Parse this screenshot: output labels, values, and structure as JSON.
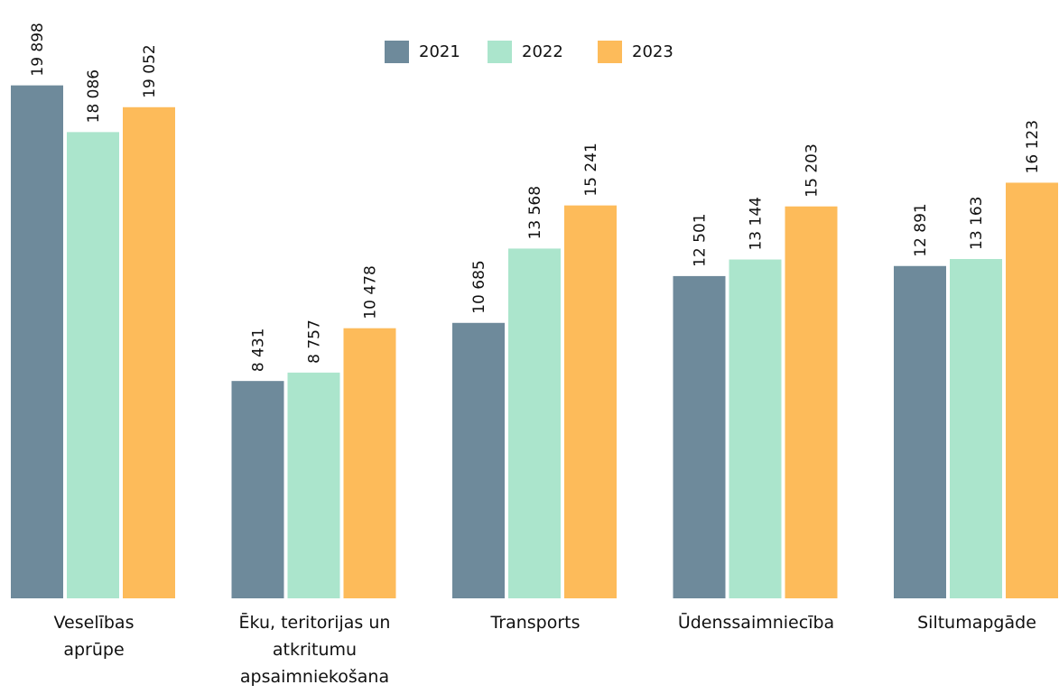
{
  "chart_data": {
    "type": "bar",
    "categories": [
      "Veselības\naprūpe",
      "Ēku, teritorijas un\natkritumu\napsaimniekošana",
      "Transports",
      "Ūdenssaimniecība",
      "Siltumapgāde"
    ],
    "series": [
      {
        "name": "2021",
        "color": "#6e8a9b",
        "values": [
          19898,
          8431,
          10685,
          12501,
          12891
        ],
        "value_labels": [
          "19 898",
          "8 431",
          "10 685",
          "12 501",
          "12 891"
        ]
      },
      {
        "name": "2022",
        "color": "#abe5cc",
        "values": [
          18086,
          8757,
          13568,
          13144,
          13163
        ],
        "value_labels": [
          "18 086",
          "8 757",
          "13 568",
          "13 144",
          "13 163"
        ]
      },
      {
        "name": "2023",
        "color": "#fdbb5a",
        "values": [
          19052,
          10478,
          15241,
          15203,
          16123
        ],
        "value_labels": [
          "19 052",
          "10 478",
          "15 241",
          "15 203",
          "16 123"
        ]
      }
    ],
    "ylim": [
      0,
      23000
    ],
    "legend": "top"
  }
}
